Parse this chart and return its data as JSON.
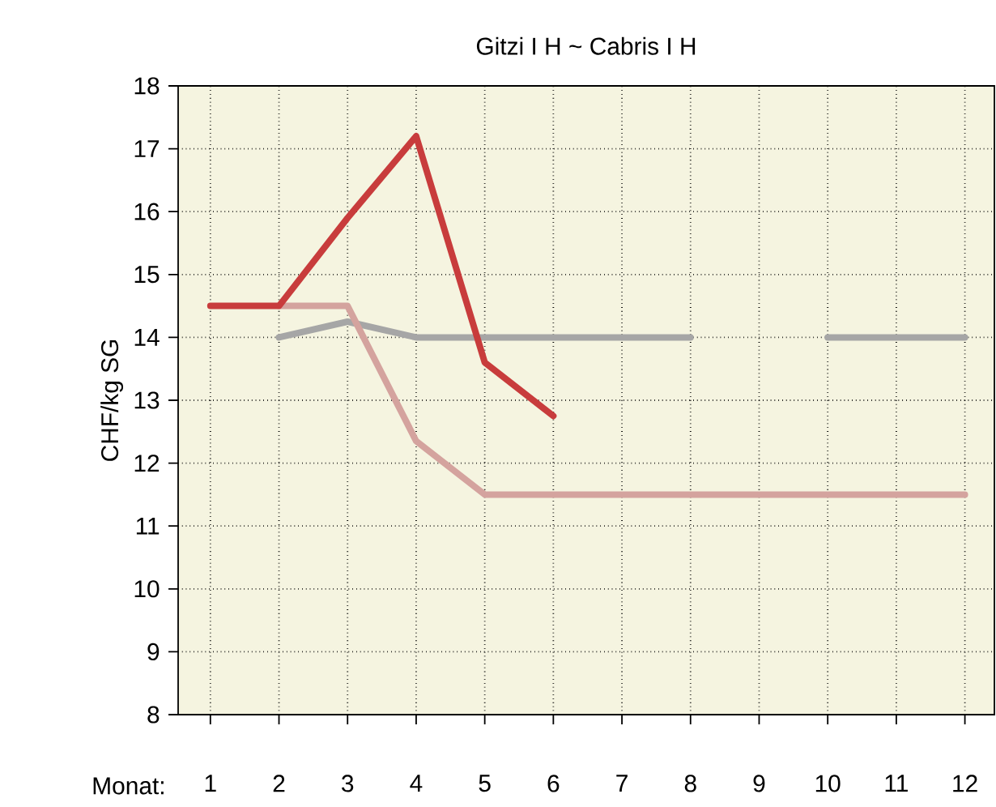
{
  "chart_data": {
    "type": "line",
    "title": "Gitzi I H   ~   Cabris I H",
    "xlabel": "Monat:",
    "ylabel": "CHF/kg SG",
    "categories": [
      "1",
      "2",
      "3",
      "4",
      "5",
      "6",
      "7",
      "8",
      "9",
      "10",
      "11",
      "12"
    ],
    "series": [
      {
        "color": "#a6a6a6",
        "values": [
          null,
          14,
          14.25,
          14,
          14,
          14,
          14,
          14,
          null,
          14,
          14,
          14
        ]
      },
      {
        "color": "#d4a39e",
        "values": [
          null,
          14.5,
          14.5,
          12.35,
          11.5,
          11.5,
          11.5,
          11.5,
          11.5,
          11.5,
          11.5,
          11.5
        ]
      },
      {
        "color": "#c83c3c",
        "values": [
          14.5,
          14.5,
          15.9,
          17.2,
          13.6,
          12.75,
          null,
          null,
          null,
          null,
          null,
          null
        ]
      }
    ],
    "ylim": [
      8,
      18
    ],
    "yticks": [
      8,
      9,
      10,
      11,
      12,
      13,
      14,
      15,
      16,
      17,
      18
    ],
    "grid": true,
    "marker": "none",
    "line_style": "solid"
  }
}
